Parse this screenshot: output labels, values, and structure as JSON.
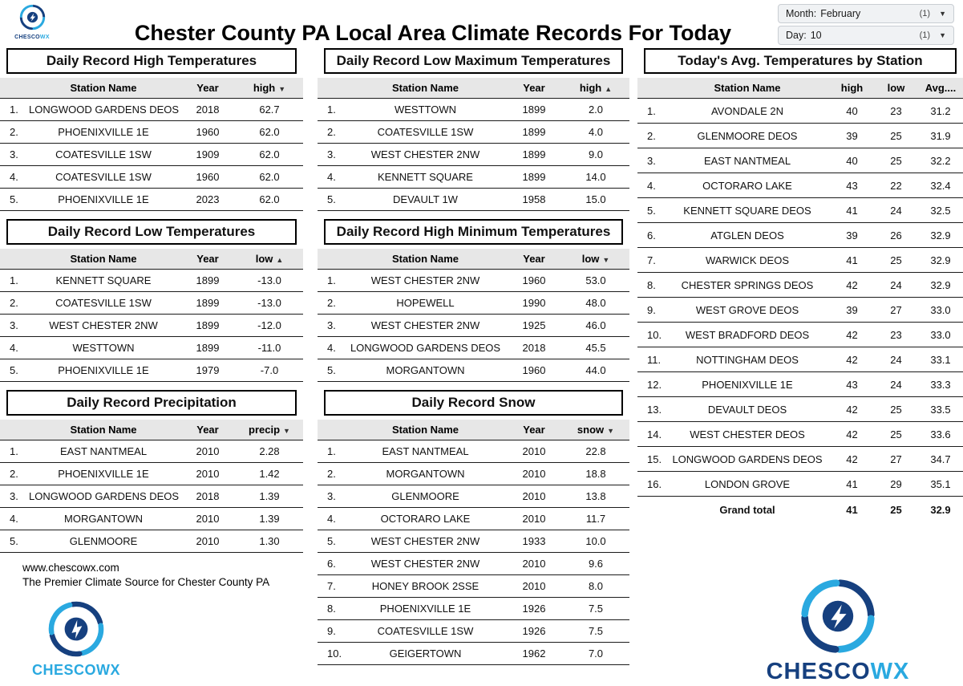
{
  "page": {
    "title": "Chester County PA Local Area Climate Records For Today"
  },
  "filters": {
    "month": {
      "label": "Month:",
      "value": "February",
      "count": "(1)"
    },
    "day": {
      "label": "Day:",
      "value": "10",
      "count": "(1)"
    }
  },
  "tables": {
    "record_high": {
      "title": "Daily Record High Temperatures",
      "columns": [
        {
          "label": "Station Name"
        },
        {
          "label": "Year"
        },
        {
          "label": "high",
          "sort": "desc"
        }
      ],
      "rows": [
        [
          "LONGWOOD GARDENS DEOS",
          "2018",
          "62.7"
        ],
        [
          "PHOENIXVILLE 1E",
          "1960",
          "62.0"
        ],
        [
          "COATESVILLE 1SW",
          "1909",
          "62.0"
        ],
        [
          "COATESVILLE 1SW",
          "1960",
          "62.0"
        ],
        [
          "PHOENIXVILLE 1E",
          "2023",
          "62.0"
        ]
      ]
    },
    "record_low": {
      "title": "Daily Record Low Temperatures",
      "columns": [
        {
          "label": "Station Name"
        },
        {
          "label": "Year"
        },
        {
          "label": "low",
          "sort": "asc"
        }
      ],
      "rows": [
        [
          "KENNETT SQUARE",
          "1899",
          "-13.0"
        ],
        [
          "COATESVILLE 1SW",
          "1899",
          "-13.0"
        ],
        [
          "WEST CHESTER 2NW",
          "1899",
          "-12.0"
        ],
        [
          "WESTTOWN",
          "1899",
          "-11.0"
        ],
        [
          "PHOENIXVILLE 1E",
          "1979",
          "-7.0"
        ]
      ]
    },
    "record_precip": {
      "title": "Daily Record Precipitation",
      "columns": [
        {
          "label": "Station Name"
        },
        {
          "label": "Year"
        },
        {
          "label": "precip",
          "sort": "desc"
        }
      ],
      "rows": [
        [
          "EAST NANTMEAL",
          "2010",
          "2.28"
        ],
        [
          "PHOENIXVILLE 1E",
          "2010",
          "1.42"
        ],
        [
          "LONGWOOD GARDENS DEOS",
          "2018",
          "1.39"
        ],
        [
          "MORGANTOWN",
          "2010",
          "1.39"
        ],
        [
          "GLENMOORE",
          "2010",
          "1.30"
        ]
      ]
    },
    "record_low_max": {
      "title": "Daily Record Low Maximum Temperatures",
      "columns": [
        {
          "label": "Station Name"
        },
        {
          "label": "Year"
        },
        {
          "label": "high",
          "sort": "asc"
        }
      ],
      "rows": [
        [
          "WESTTOWN",
          "1899",
          "2.0"
        ],
        [
          "COATESVILLE 1SW",
          "1899",
          "4.0"
        ],
        [
          "WEST CHESTER 2NW",
          "1899",
          "9.0"
        ],
        [
          "KENNETT SQUARE",
          "1899",
          "14.0"
        ],
        [
          "DEVAULT 1W",
          "1958",
          "15.0"
        ]
      ]
    },
    "record_high_min": {
      "title": "Daily Record High Minimum Temperatures",
      "columns": [
        {
          "label": "Station Name"
        },
        {
          "label": "Year"
        },
        {
          "label": "low",
          "sort": "desc"
        }
      ],
      "rows": [
        [
          "WEST CHESTER 2NW",
          "1960",
          "53.0"
        ],
        [
          "HOPEWELL",
          "1990",
          "48.0"
        ],
        [
          "WEST CHESTER 2NW",
          "1925",
          "46.0"
        ],
        [
          "LONGWOOD GARDENS DEOS",
          "2018",
          "45.5"
        ],
        [
          "MORGANTOWN",
          "1960",
          "44.0"
        ]
      ]
    },
    "record_snow": {
      "title": "Daily Record Snow",
      "columns": [
        {
          "label": "Station Name"
        },
        {
          "label": "Year"
        },
        {
          "label": "snow",
          "sort": "desc"
        }
      ],
      "rows": [
        [
          "EAST NANTMEAL",
          "2010",
          "22.8"
        ],
        [
          "MORGANTOWN",
          "2010",
          "18.8"
        ],
        [
          "GLENMOORE",
          "2010",
          "13.8"
        ],
        [
          "OCTORARO LAKE",
          "2010",
          "11.7"
        ],
        [
          "WEST CHESTER 2NW",
          "1933",
          "10.0"
        ],
        [
          "WEST CHESTER 2NW",
          "2010",
          "9.6"
        ],
        [
          "HONEY BROOK 2SSE",
          "2010",
          "8.0"
        ],
        [
          "PHOENIXVILLE 1E",
          "1926",
          "7.5"
        ],
        [
          "COATESVILLE 1SW",
          "1926",
          "7.5"
        ],
        [
          "GEIGERTOWN",
          "1962",
          "7.0"
        ]
      ]
    },
    "avg_temps": {
      "title": "Today's Avg. Temperatures by Station",
      "columns": [
        {
          "label": "Station Name"
        },
        {
          "label": "high"
        },
        {
          "label": "low"
        },
        {
          "label": "Avg...."
        }
      ],
      "rows": [
        [
          "AVONDALE 2N",
          "40",
          "23",
          "31.2"
        ],
        [
          "GLENMOORE DEOS",
          "39",
          "25",
          "31.9"
        ],
        [
          "EAST NANTMEAL",
          "40",
          "25",
          "32.2"
        ],
        [
          "OCTORARO LAKE",
          "43",
          "22",
          "32.4"
        ],
        [
          "KENNETT SQUARE DEOS",
          "41",
          "24",
          "32.5"
        ],
        [
          "ATGLEN DEOS",
          "39",
          "26",
          "32.9"
        ],
        [
          "WARWICK DEOS",
          "41",
          "25",
          "32.9"
        ],
        [
          "CHESTER SPRINGS DEOS",
          "42",
          "24",
          "32.9"
        ],
        [
          "WEST GROVE DEOS",
          "39",
          "27",
          "33.0"
        ],
        [
          "WEST BRADFORD DEOS",
          "42",
          "23",
          "33.0"
        ],
        [
          "NOTTINGHAM DEOS",
          "42",
          "24",
          "33.1"
        ],
        [
          "PHOENIXVILLE 1E",
          "43",
          "24",
          "33.3"
        ],
        [
          "DEVAULT DEOS",
          "42",
          "25",
          "33.5"
        ],
        [
          "WEST CHESTER DEOS",
          "42",
          "25",
          "33.6"
        ],
        [
          "LONGWOOD GARDENS DEOS",
          "42",
          "27",
          "34.7"
        ],
        [
          "LONDON GROVE",
          "41",
          "29",
          "35.1"
        ]
      ],
      "grand_total": {
        "label": "Grand total",
        "high": "41",
        "low": "25",
        "avg": "32.9"
      }
    }
  },
  "footer": {
    "site": "www.chescowx.com",
    "tagline": "The Premier Climate Source for Chester County PA"
  },
  "logo": {
    "brand_dark": "CHESCO",
    "brand_light": "WX",
    "brand_full": "CHESCOWX"
  }
}
